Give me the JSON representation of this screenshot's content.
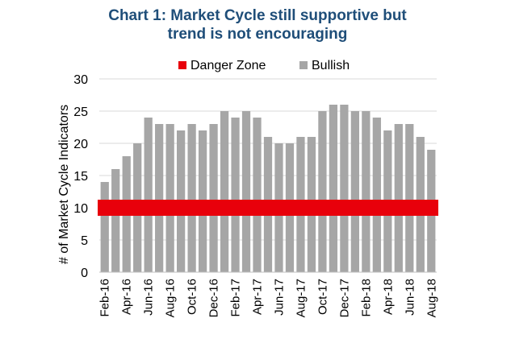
{
  "chart_data": {
    "type": "bar",
    "title_lines": [
      "Chart 1: Market Cycle still supportive but",
      "trend is not encouraging"
    ],
    "ylabel": "# of Market Cycle Indicators",
    "xlabel": "",
    "ylim": [
      0,
      30
    ],
    "yticks": [
      0,
      5,
      10,
      15,
      20,
      25,
      30
    ],
    "grid": true,
    "legend_position": "top",
    "legend": [
      {
        "label": "Danger Zone",
        "color": "#e8000b"
      },
      {
        "label": "Bullish",
        "color": "#a6a6a6"
      }
    ],
    "categories": [
      "Feb-16",
      "Mar-16",
      "Apr-16",
      "May-16",
      "Jun-16",
      "Jul-16",
      "Aug-16",
      "Sep-16",
      "Oct-16",
      "Nov-16",
      "Dec-16",
      "Jan-17",
      "Feb-17",
      "Mar-17",
      "Apr-17",
      "May-17",
      "Jun-17",
      "Jul-17",
      "Aug-17",
      "Sep-17",
      "Oct-17",
      "Nov-17",
      "Dec-17",
      "Jan-18",
      "Feb-18",
      "Mar-18",
      "Apr-18",
      "May-18",
      "Jun-18",
      "Jul-18",
      "Aug-18"
    ],
    "tick_labels": [
      "Feb-16",
      "Apr-16",
      "Jun-16",
      "Aug-16",
      "Oct-16",
      "Dec-16",
      "Feb-17",
      "Apr-17",
      "Jun-17",
      "Aug-17",
      "Oct-17",
      "Dec-17",
      "Feb-18",
      "Apr-18",
      "Jun-18",
      "Aug-18"
    ],
    "series": [
      {
        "name": "Bullish",
        "color": "#a6a6a6",
        "values": [
          14,
          16,
          18,
          20,
          24,
          23,
          23,
          22,
          23,
          22,
          23,
          25,
          24,
          25,
          24,
          21,
          20,
          20,
          21,
          21,
          25,
          26,
          26,
          25,
          25,
          24,
          22,
          23,
          23,
          21,
          19
        ]
      }
    ],
    "danger_zone": {
      "name": "Danger Zone",
      "color": "#e8000b",
      "value": 10
    }
  }
}
